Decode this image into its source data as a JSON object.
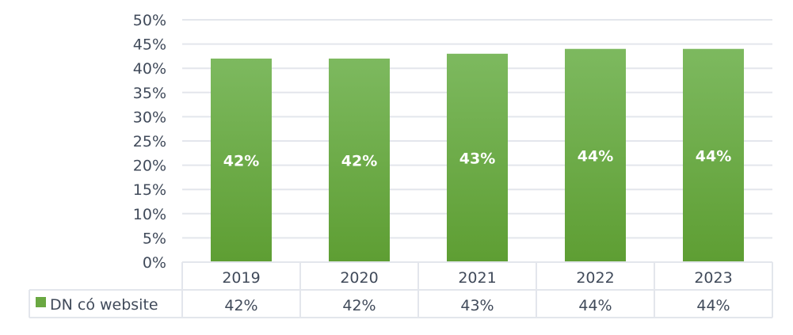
{
  "chart_data": {
    "type": "bar",
    "categories": [
      "2019",
      "2020",
      "2021",
      "2022",
      "2023"
    ],
    "series": [
      {
        "name": "DN có website",
        "values": [
          42,
          42,
          43,
          44,
          44
        ],
        "color": "#6aa842"
      }
    ],
    "data_labels": [
      "42%",
      "42%",
      "43%",
      "44%",
      "44%"
    ],
    "ylim": [
      0,
      50
    ],
    "yticks": [
      "0%",
      "5%",
      "10%",
      "15%",
      "20%",
      "25%",
      "30%",
      "35%",
      "40%",
      "45%",
      "50%"
    ],
    "grid": true,
    "legend": "data-table-bottom",
    "table_values": [
      "42%",
      "42%",
      "43%",
      "44%",
      "44%"
    ],
    "colors": {
      "bar_top": "#7db95f",
      "bar_bottom": "#5e9e33",
      "text": "#404a5a",
      "grid": "#e3e6ec"
    }
  }
}
